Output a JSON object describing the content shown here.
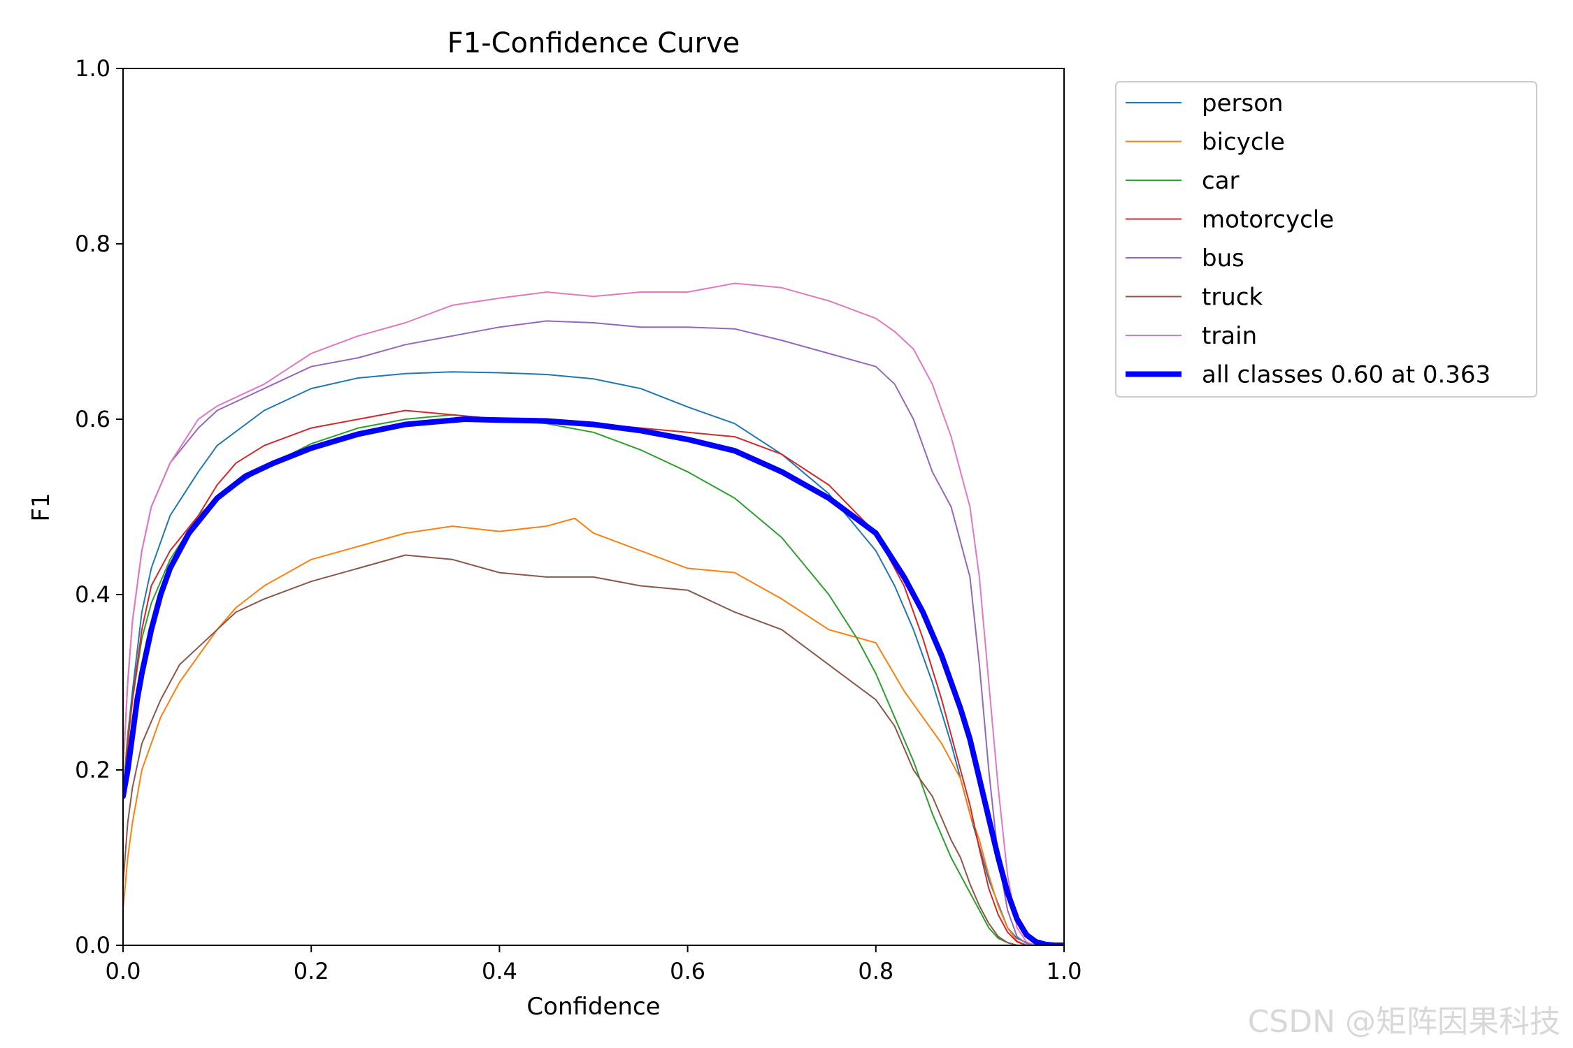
{
  "chart_data": {
    "type": "line",
    "title": "F1-Confidence Curve",
    "xlabel": "Confidence",
    "ylabel": "F1",
    "xlim": [
      0.0,
      1.0
    ],
    "ylim": [
      0.0,
      1.0
    ],
    "xticks": [
      "0.0",
      "0.2",
      "0.4",
      "0.6",
      "0.8",
      "1.0"
    ],
    "yticks": [
      "0.0",
      "0.2",
      "0.4",
      "0.6",
      "0.8",
      "1.0"
    ],
    "grid": false,
    "legend_position": "outside-right-top",
    "series": [
      {
        "name": "person",
        "color": "#1f77b4",
        "linewidth": 2,
        "x": [
          0.0,
          0.005,
          0.01,
          0.02,
          0.03,
          0.05,
          0.08,
          0.1,
          0.15,
          0.2,
          0.25,
          0.3,
          0.35,
          0.4,
          0.45,
          0.5,
          0.55,
          0.6,
          0.65,
          0.7,
          0.75,
          0.8,
          0.82,
          0.84,
          0.86,
          0.88,
          0.9,
          0.92,
          0.94,
          0.95,
          0.96,
          0.97,
          1.0
        ],
        "y": [
          0.17,
          0.24,
          0.29,
          0.38,
          0.43,
          0.49,
          0.54,
          0.57,
          0.61,
          0.635,
          0.647,
          0.652,
          0.654,
          0.653,
          0.651,
          0.646,
          0.635,
          0.614,
          0.595,
          0.56,
          0.515,
          0.45,
          0.41,
          0.36,
          0.3,
          0.23,
          0.15,
          0.075,
          0.02,
          0.008,
          0.003,
          0.0,
          0.0
        ]
      },
      {
        "name": "bicycle",
        "color": "#ff7f0e",
        "linewidth": 2,
        "x": [
          0.0,
          0.005,
          0.01,
          0.02,
          0.04,
          0.06,
          0.08,
          0.1,
          0.12,
          0.15,
          0.2,
          0.25,
          0.3,
          0.35,
          0.4,
          0.45,
          0.48,
          0.5,
          0.55,
          0.6,
          0.65,
          0.7,
          0.75,
          0.8,
          0.83,
          0.85,
          0.87,
          0.89,
          0.9,
          0.91,
          0.92,
          0.93,
          0.94,
          0.95,
          0.96
        ],
        "y": [
          0.04,
          0.1,
          0.14,
          0.2,
          0.26,
          0.3,
          0.33,
          0.36,
          0.385,
          0.41,
          0.44,
          0.455,
          0.47,
          0.478,
          0.472,
          0.478,
          0.487,
          0.47,
          0.45,
          0.43,
          0.425,
          0.395,
          0.36,
          0.345,
          0.29,
          0.26,
          0.23,
          0.19,
          0.15,
          0.12,
          0.08,
          0.045,
          0.02,
          0.005,
          0.0
        ]
      },
      {
        "name": "car",
        "color": "#2ca02c",
        "linewidth": 2,
        "x": [
          0.0,
          0.005,
          0.01,
          0.02,
          0.03,
          0.05,
          0.08,
          0.1,
          0.15,
          0.2,
          0.25,
          0.3,
          0.35,
          0.4,
          0.45,
          0.5,
          0.55,
          0.6,
          0.65,
          0.7,
          0.75,
          0.78,
          0.8,
          0.82,
          0.84,
          0.86,
          0.88,
          0.9,
          0.91,
          0.92,
          0.93,
          0.94,
          0.95
        ],
        "y": [
          0.17,
          0.24,
          0.28,
          0.35,
          0.39,
          0.44,
          0.49,
          0.51,
          0.545,
          0.572,
          0.59,
          0.6,
          0.605,
          0.6,
          0.595,
          0.585,
          0.565,
          0.54,
          0.51,
          0.465,
          0.4,
          0.35,
          0.31,
          0.26,
          0.21,
          0.15,
          0.1,
          0.06,
          0.04,
          0.02,
          0.008,
          0.003,
          0.0
        ]
      },
      {
        "name": "motorcycle",
        "color": "#d62728",
        "linewidth": 2,
        "x": [
          0.0,
          0.005,
          0.01,
          0.02,
          0.03,
          0.05,
          0.08,
          0.1,
          0.12,
          0.15,
          0.2,
          0.25,
          0.3,
          0.35,
          0.4,
          0.45,
          0.5,
          0.55,
          0.6,
          0.65,
          0.7,
          0.75,
          0.8,
          0.83,
          0.85,
          0.87,
          0.89,
          0.9,
          0.91,
          0.92,
          0.93,
          0.94,
          0.95,
          0.96
        ],
        "y": [
          0.17,
          0.23,
          0.28,
          0.36,
          0.41,
          0.45,
          0.49,
          0.525,
          0.55,
          0.57,
          0.59,
          0.6,
          0.61,
          0.605,
          0.6,
          0.598,
          0.595,
          0.59,
          0.585,
          0.58,
          0.56,
          0.525,
          0.47,
          0.41,
          0.35,
          0.28,
          0.2,
          0.16,
          0.11,
          0.065,
          0.035,
          0.015,
          0.004,
          0.0
        ]
      },
      {
        "name": "bus",
        "color": "#9467bd",
        "linewidth": 2,
        "x": [
          0.0,
          0.005,
          0.01,
          0.02,
          0.03,
          0.05,
          0.08,
          0.1,
          0.15,
          0.2,
          0.25,
          0.3,
          0.35,
          0.4,
          0.45,
          0.5,
          0.55,
          0.6,
          0.65,
          0.7,
          0.75,
          0.8,
          0.82,
          0.84,
          0.85,
          0.86,
          0.88,
          0.9,
          0.91,
          0.92,
          0.93,
          0.94,
          0.95,
          0.96,
          0.97
        ],
        "y": [
          0.2,
          0.3,
          0.37,
          0.45,
          0.5,
          0.55,
          0.59,
          0.61,
          0.635,
          0.66,
          0.67,
          0.685,
          0.695,
          0.705,
          0.712,
          0.71,
          0.705,
          0.705,
          0.703,
          0.69,
          0.675,
          0.66,
          0.64,
          0.6,
          0.57,
          0.54,
          0.5,
          0.42,
          0.32,
          0.2,
          0.1,
          0.04,
          0.01,
          0.002,
          0.0
        ]
      },
      {
        "name": "truck",
        "color": "#8c564b",
        "linewidth": 2,
        "x": [
          0.0,
          0.005,
          0.01,
          0.02,
          0.04,
          0.06,
          0.08,
          0.1,
          0.12,
          0.15,
          0.2,
          0.25,
          0.3,
          0.35,
          0.4,
          0.45,
          0.5,
          0.55,
          0.6,
          0.65,
          0.7,
          0.75,
          0.8,
          0.82,
          0.84,
          0.86,
          0.88,
          0.89,
          0.9,
          0.91,
          0.92,
          0.93,
          0.94,
          0.95
        ],
        "y": [
          0.07,
          0.14,
          0.18,
          0.23,
          0.28,
          0.32,
          0.34,
          0.36,
          0.38,
          0.395,
          0.415,
          0.43,
          0.445,
          0.44,
          0.425,
          0.42,
          0.42,
          0.41,
          0.405,
          0.38,
          0.36,
          0.32,
          0.28,
          0.25,
          0.2,
          0.17,
          0.12,
          0.1,
          0.07,
          0.045,
          0.025,
          0.01,
          0.003,
          0.0
        ]
      },
      {
        "name": "train",
        "color": "#e377c2",
        "linewidth": 2,
        "x": [
          0.0,
          0.005,
          0.01,
          0.02,
          0.03,
          0.05,
          0.08,
          0.1,
          0.15,
          0.2,
          0.25,
          0.3,
          0.35,
          0.4,
          0.45,
          0.5,
          0.55,
          0.6,
          0.65,
          0.7,
          0.75,
          0.8,
          0.82,
          0.84,
          0.86,
          0.88,
          0.9,
          0.91,
          0.92,
          0.93,
          0.94,
          0.95,
          0.96,
          0.97
        ],
        "y": [
          0.2,
          0.3,
          0.37,
          0.45,
          0.5,
          0.55,
          0.6,
          0.615,
          0.64,
          0.675,
          0.695,
          0.71,
          0.73,
          0.738,
          0.745,
          0.74,
          0.745,
          0.745,
          0.755,
          0.75,
          0.735,
          0.715,
          0.7,
          0.68,
          0.64,
          0.58,
          0.5,
          0.42,
          0.3,
          0.18,
          0.08,
          0.02,
          0.004,
          0.0
        ]
      },
      {
        "name": "all classes 0.60 at 0.363",
        "color": "#0000ff",
        "linewidth": 8,
        "x": [
          0.0,
          0.005,
          0.01,
          0.015,
          0.02,
          0.03,
          0.04,
          0.05,
          0.07,
          0.1,
          0.13,
          0.16,
          0.2,
          0.25,
          0.3,
          0.363,
          0.4,
          0.45,
          0.5,
          0.55,
          0.6,
          0.65,
          0.7,
          0.75,
          0.8,
          0.83,
          0.85,
          0.87,
          0.89,
          0.9,
          0.91,
          0.92,
          0.93,
          0.94,
          0.95,
          0.96,
          0.97,
          0.98,
          0.99,
          1.0
        ],
        "y": [
          0.17,
          0.2,
          0.24,
          0.28,
          0.31,
          0.36,
          0.4,
          0.43,
          0.47,
          0.51,
          0.535,
          0.55,
          0.567,
          0.583,
          0.594,
          0.6,
          0.599,
          0.598,
          0.594,
          0.587,
          0.577,
          0.564,
          0.54,
          0.51,
          0.47,
          0.42,
          0.38,
          0.33,
          0.27,
          0.235,
          0.19,
          0.145,
          0.1,
          0.06,
          0.03,
          0.012,
          0.004,
          0.001,
          0.0,
          0.0
        ]
      }
    ]
  },
  "watermark": "CSDN @矩阵因果科技"
}
